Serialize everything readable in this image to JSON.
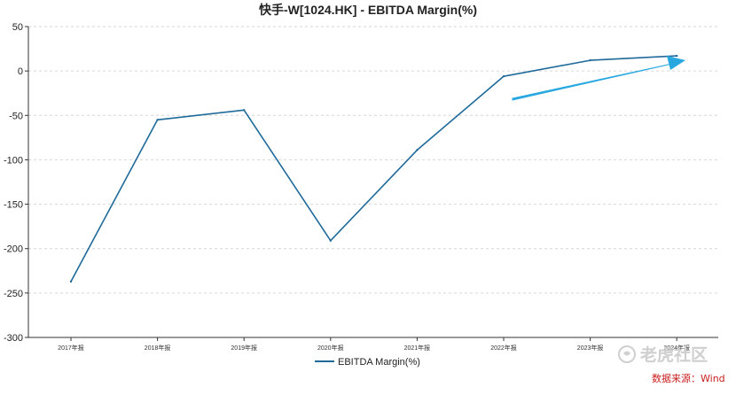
{
  "chart_data": {
    "type": "line",
    "title": "快手-W[1024.HK] - EBITDA Margin(%)",
    "categories": [
      "2017年报",
      "2018年报",
      "2019年报",
      "2020年报",
      "2021年报",
      "2022年报",
      "2023年报",
      "2024年报"
    ],
    "series": [
      {
        "name": "EBITDA Margin(%)",
        "values": [
          -237,
          -55,
          -44,
          -191,
          -89,
          -6,
          12,
          17
        ],
        "color": "#1f6a9a"
      }
    ],
    "yticks": [
      50,
      0,
      -50,
      -100,
      -150,
      -200,
      -250,
      -300
    ],
    "ylim": [
      -300,
      50
    ],
    "grid": true,
    "legend_position": "bottom"
  },
  "annotation": {
    "type": "arrow",
    "color": "#29a8e0"
  },
  "watermark": {
    "text": "老虎社区"
  },
  "source": "数据来源：Wind"
}
